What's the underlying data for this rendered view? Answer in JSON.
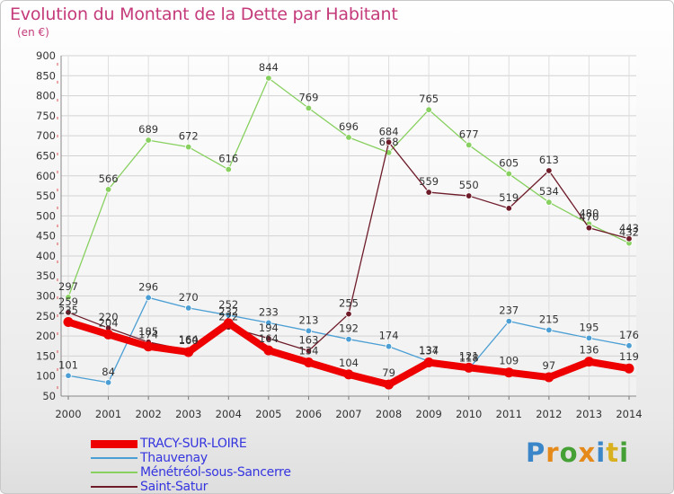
{
  "header": {
    "title": "Evolution du Montant de la Dette par Habitant",
    "unit": "(en €)"
  },
  "brand": {
    "text": "Proxiti",
    "letter_colors": [
      "#3a86c8",
      "#e58a1a",
      "#45a035",
      "#e58a1a",
      "#3a86c8",
      "#d8b020",
      "#45a035"
    ]
  },
  "chart_data": {
    "type": "line",
    "title": "Evolution du Montant de la Dette par Habitant",
    "ylabel": "(en €)",
    "ylim": [
      50,
      900
    ],
    "yticks": [
      50,
      100,
      150,
      200,
      250,
      300,
      350,
      400,
      450,
      500,
      550,
      600,
      650,
      700,
      750,
      800,
      850,
      900
    ],
    "grid": true,
    "x": [
      "2000",
      "2001",
      "2002",
      "2003",
      "2004",
      "2005",
      "2006",
      "2007",
      "2008",
      "2009",
      "2010",
      "2011",
      "2012",
      "2013",
      "2014"
    ],
    "series": [
      {
        "name": "Ménétréol-sous-Sancerre",
        "color": "#88d060",
        "values": [
          297,
          566,
          689,
          672,
          616,
          844,
          769,
          696,
          658,
          765,
          677,
          605,
          534,
          480,
          432
        ]
      },
      {
        "name": "Thauvenay",
        "color": "#4c9fd4",
        "values": [
          101,
          84,
          296,
          270,
          252,
          233,
          213,
          192,
          174,
          137,
          118,
          237,
          215,
          195,
          176
        ]
      },
      {
        "name": "Saint-Satur",
        "color": "#6e1c2a",
        "values": [
          259,
          220,
          185,
          164,
          222,
          194,
          163,
          255,
          684,
          559,
          550,
          519,
          613,
          470,
          443
        ]
      },
      {
        "name": "TRACY-SUR-LOIRE",
        "color": "#ee0000",
        "values": [
          235,
          204,
          174,
          160,
          232,
          164,
          134,
          104,
          79,
          134,
          121,
          109,
          97,
          136,
          119
        ]
      }
    ],
    "data_labels": [
      [
        "297",
        "566",
        "689",
        "672",
        "616",
        "844",
        "769",
        "696",
        "658",
        "765",
        "677",
        "605",
        "534",
        "480",
        "432"
      ],
      [
        "101",
        "84",
        "296",
        "270",
        "252",
        "233",
        "213",
        "192",
        "174",
        "137",
        "118",
        "237",
        "215",
        "195",
        "176"
      ],
      [
        "259",
        "220",
        "185",
        "164",
        "222",
        "194",
        "163",
        "255",
        "684",
        "559",
        "550",
        "519",
        "613",
        "470",
        "443"
      ],
      [
        "235",
        "204",
        "174",
        "160",
        "232",
        "164",
        "134",
        "104",
        "79",
        "134",
        "121",
        "109",
        "97",
        "136",
        "119"
      ]
    ]
  },
  "legend": {
    "items": [
      {
        "label": "TRACY-SUR-LOIRE",
        "color": "#ee0000",
        "thick": true
      },
      {
        "label": "Thauvenay",
        "color": "#4c9fd4",
        "thick": false
      },
      {
        "label": "Ménétréol-sous-Sancerre",
        "color": "#88d060",
        "thick": false
      },
      {
        "label": "Saint-Satur",
        "color": "#6e1c2a",
        "thick": false
      }
    ]
  }
}
